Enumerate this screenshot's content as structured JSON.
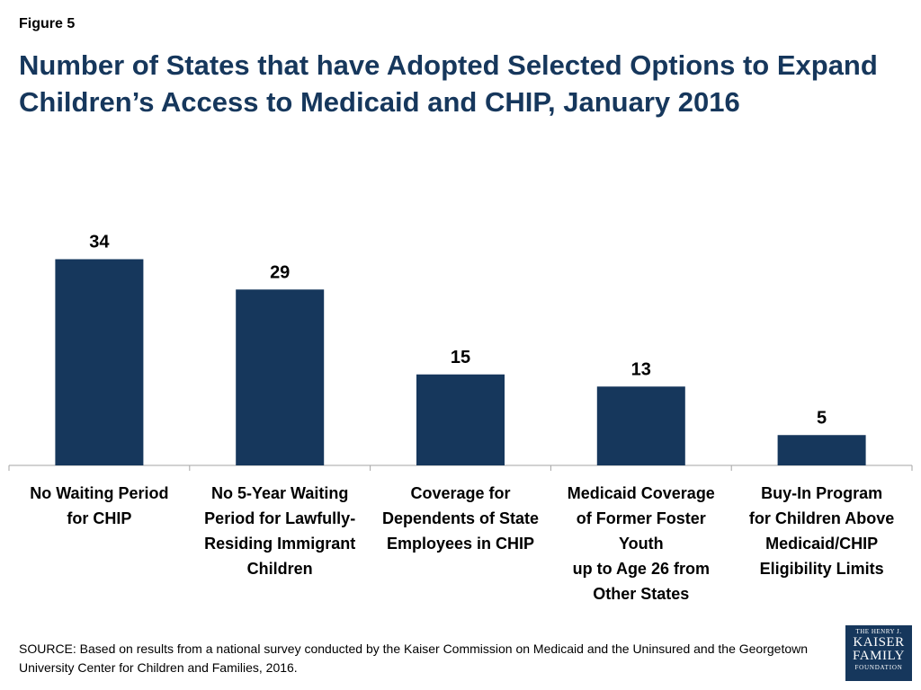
{
  "figure_label": "Figure 5",
  "title": "Number of States that have Adopted Selected Options to Expand Children’s Access to Medicaid and CHIP, January 2016",
  "source": "SOURCE: Based on results from a national survey conducted by the Kaiser Commission on Medicaid and the Uninsured and the Georgetown University Center for Children and Families, 2016.",
  "logo": {
    "line1": "THE HENRY J.",
    "line2": "KAISER",
    "line3": "FAMILY",
    "line4": "FOUNDATION"
  },
  "colors": {
    "bar": "#16375c",
    "title": "#16375c"
  },
  "chart_data": {
    "type": "bar",
    "title": "Number of States that have Adopted Selected Options to Expand Children’s Access to Medicaid and CHIP, January 2016",
    "xlabel": "",
    "ylabel": "",
    "ylim": [
      0,
      40
    ],
    "grid": false,
    "categories": [
      "No Waiting Period\nfor CHIP",
      "No 5-Year Waiting\nPeriod for Lawfully-\nResiding Immigrant\nChildren",
      "Coverage for\nDependents of State\nEmployees in CHIP",
      "Medicaid Coverage\nof Former Foster\nYouth\nup to Age 26 from\nOther States",
      "Buy-In Program\nfor Children Above\nMedicaid/CHIP\nEligibility Limits"
    ],
    "values": [
      34,
      29,
      15,
      13,
      5
    ],
    "data_labels": [
      "34",
      "29",
      "15",
      "13",
      "5"
    ]
  }
}
